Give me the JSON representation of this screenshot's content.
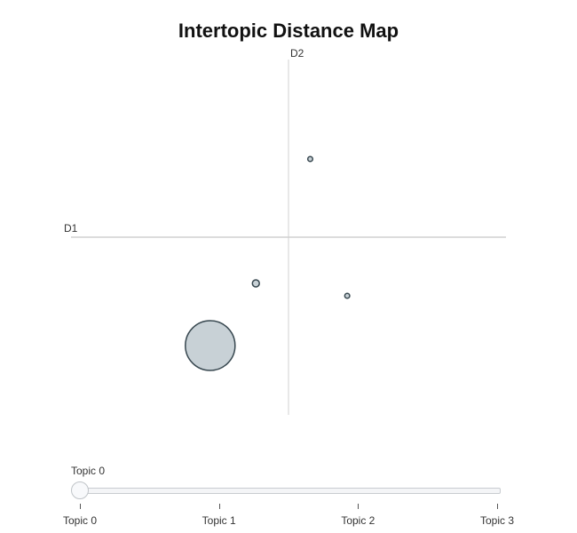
{
  "chart_data": {
    "type": "scatter",
    "title": "Intertopic Distance Map",
    "xlabel": "D1",
    "ylabel": "D2",
    "xlim": [
      -10,
      10
    ],
    "ylim": [
      -10,
      10
    ],
    "grid": false,
    "points": [
      {
        "topic": "Topic 0",
        "x": -3.6,
        "y": -6.1,
        "size": 100
      },
      {
        "topic": "Topic 1",
        "x": -1.5,
        "y": -2.6,
        "size": 2
      },
      {
        "topic": "Topic 2",
        "x": 2.7,
        "y": -3.3,
        "size": 1
      },
      {
        "topic": "Topic 3",
        "x": 1.0,
        "y": 4.4,
        "size": 1
      }
    ],
    "colors": {
      "fill": "#b0bec5",
      "stroke": "#37474f",
      "axis": "#d0d0d0"
    }
  },
  "slider": {
    "current_label": "Topic 0",
    "value": 0,
    "steps": [
      "Topic 0",
      "Topic 1",
      "Topic 2",
      "Topic 3"
    ]
  }
}
